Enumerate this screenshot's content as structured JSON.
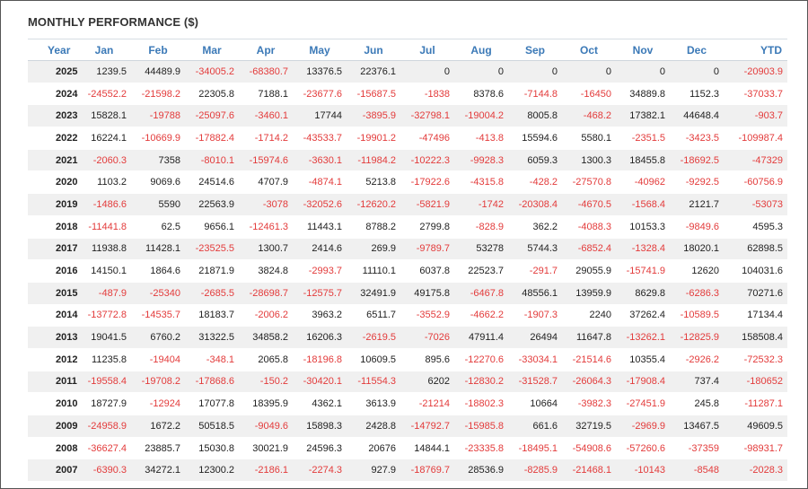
{
  "title": "MONTHLY PERFORMANCE ($)",
  "colors": {
    "negative": "#e33b3b",
    "header": "#3b79b7"
  },
  "columns": [
    "Year",
    "Jan",
    "Feb",
    "Mar",
    "Apr",
    "May",
    "Jun",
    "Jul",
    "Aug",
    "Sep",
    "Oct",
    "Nov",
    "Dec",
    "YTD"
  ],
  "rows": [
    [
      "2025",
      "1239.5",
      "44489.9",
      "-34005.2",
      "-68380.7",
      "13376.5",
      "22376.1",
      "0",
      "0",
      "0",
      "0",
      "0",
      "0",
      "-20903.9"
    ],
    [
      "2024",
      "-24552.2",
      "-21598.2",
      "22305.8",
      "7188.1",
      "-23677.6",
      "-15687.5",
      "-1838",
      "8378.6",
      "-7144.8",
      "-16450",
      "34889.8",
      "1152.3",
      "-37033.7"
    ],
    [
      "2023",
      "15828.1",
      "-19788",
      "-25097.6",
      "-3460.1",
      "17744",
      "-3895.9",
      "-32798.1",
      "-19004.2",
      "8005.8",
      "-468.2",
      "17382.1",
      "44648.4",
      "-903.7"
    ],
    [
      "2022",
      "16224.1",
      "-10669.9",
      "-17882.4",
      "-1714.2",
      "-43533.7",
      "-19901.2",
      "-47496",
      "-413.8",
      "15594.6",
      "5580.1",
      "-2351.5",
      "-3423.5",
      "-109987.4"
    ],
    [
      "2021",
      "-2060.3",
      "7358",
      "-8010.1",
      "-15974.6",
      "-3630.1",
      "-11984.2",
      "-10222.3",
      "-9928.3",
      "6059.3",
      "1300.3",
      "18455.8",
      "-18692.5",
      "-47329"
    ],
    [
      "2020",
      "1103.2",
      "9069.6",
      "24514.6",
      "4707.9",
      "-4874.1",
      "5213.8",
      "-17922.6",
      "-4315.8",
      "-428.2",
      "-27570.8",
      "-40962",
      "-9292.5",
      "-60756.9"
    ],
    [
      "2019",
      "-1486.6",
      "5590",
      "22563.9",
      "-3078",
      "-32052.6",
      "-12620.2",
      "-5821.9",
      "-1742",
      "-20308.4",
      "-4670.5",
      "-1568.4",
      "2121.7",
      "-53073"
    ],
    [
      "2018",
      "-11441.8",
      "62.5",
      "9656.1",
      "-12461.3",
      "11443.1",
      "8788.2",
      "2799.8",
      "-828.9",
      "362.2",
      "-4088.3",
      "10153.3",
      "-9849.6",
      "4595.3"
    ],
    [
      "2017",
      "11938.8",
      "11428.1",
      "-23525.5",
      "1300.7",
      "2414.6",
      "269.9",
      "-9789.7",
      "53278",
      "5744.3",
      "-6852.4",
      "-1328.4",
      "18020.1",
      "62898.5"
    ],
    [
      "2016",
      "14150.1",
      "1864.6",
      "21871.9",
      "3824.8",
      "-2993.7",
      "11110.1",
      "6037.8",
      "22523.7",
      "-291.7",
      "29055.9",
      "-15741.9",
      "12620",
      "104031.6"
    ],
    [
      "2015",
      "-487.9",
      "-25340",
      "-2685.5",
      "-28698.7",
      "-12575.7",
      "32491.9",
      "49175.8",
      "-6467.8",
      "48556.1",
      "13959.9",
      "8629.8",
      "-6286.3",
      "70271.6"
    ],
    [
      "2014",
      "-13772.8",
      "-14535.7",
      "18183.7",
      "-2006.2",
      "3963.2",
      "6511.7",
      "-3552.9",
      "-4662.2",
      "-1907.3",
      "2240",
      "37262.4",
      "-10589.5",
      "17134.4"
    ],
    [
      "2013",
      "19041.5",
      "6760.2",
      "31322.5",
      "34858.2",
      "16206.3",
      "-2619.5",
      "-7026",
      "47911.4",
      "26494",
      "11647.8",
      "-13262.1",
      "-12825.9",
      "158508.4"
    ],
    [
      "2012",
      "11235.8",
      "-19404",
      "-348.1",
      "2065.8",
      "-18196.8",
      "10609.5",
      "895.6",
      "-12270.6",
      "-33034.1",
      "-21514.6",
      "10355.4",
      "-2926.2",
      "-72532.3"
    ],
    [
      "2011",
      "-19558.4",
      "-19708.2",
      "-17868.6",
      "-150.2",
      "-30420.1",
      "-11554.3",
      "6202",
      "-12830.2",
      "-31528.7",
      "-26064.3",
      "-17908.4",
      "737.4",
      "-180652"
    ],
    [
      "2010",
      "18727.9",
      "-12924",
      "17077.8",
      "18395.9",
      "4362.1",
      "3613.9",
      "-21214",
      "-18802.3",
      "10664",
      "-3982.3",
      "-27451.9",
      "245.8",
      "-11287.1"
    ],
    [
      "2009",
      "-24958.9",
      "1672.2",
      "50518.5",
      "-9049.6",
      "15898.3",
      "2428.8",
      "-14792.7",
      "-15985.8",
      "661.6",
      "32719.5",
      "-2969.9",
      "13467.5",
      "49609.5"
    ],
    [
      "2008",
      "-36627.4",
      "23885.7",
      "15030.8",
      "30021.9",
      "24596.3",
      "20676",
      "14844.1",
      "-23335.8",
      "-18495.1",
      "-54908.6",
      "-57260.6",
      "-37359",
      "-98931.7"
    ],
    [
      "2007",
      "-6390.3",
      "34272.1",
      "12300.2",
      "-2186.1",
      "-2274.3",
      "927.9",
      "-18769.7",
      "28536.9",
      "-8285.9",
      "-21468.1",
      "-10143",
      "-8548",
      "-2028.3"
    ]
  ]
}
